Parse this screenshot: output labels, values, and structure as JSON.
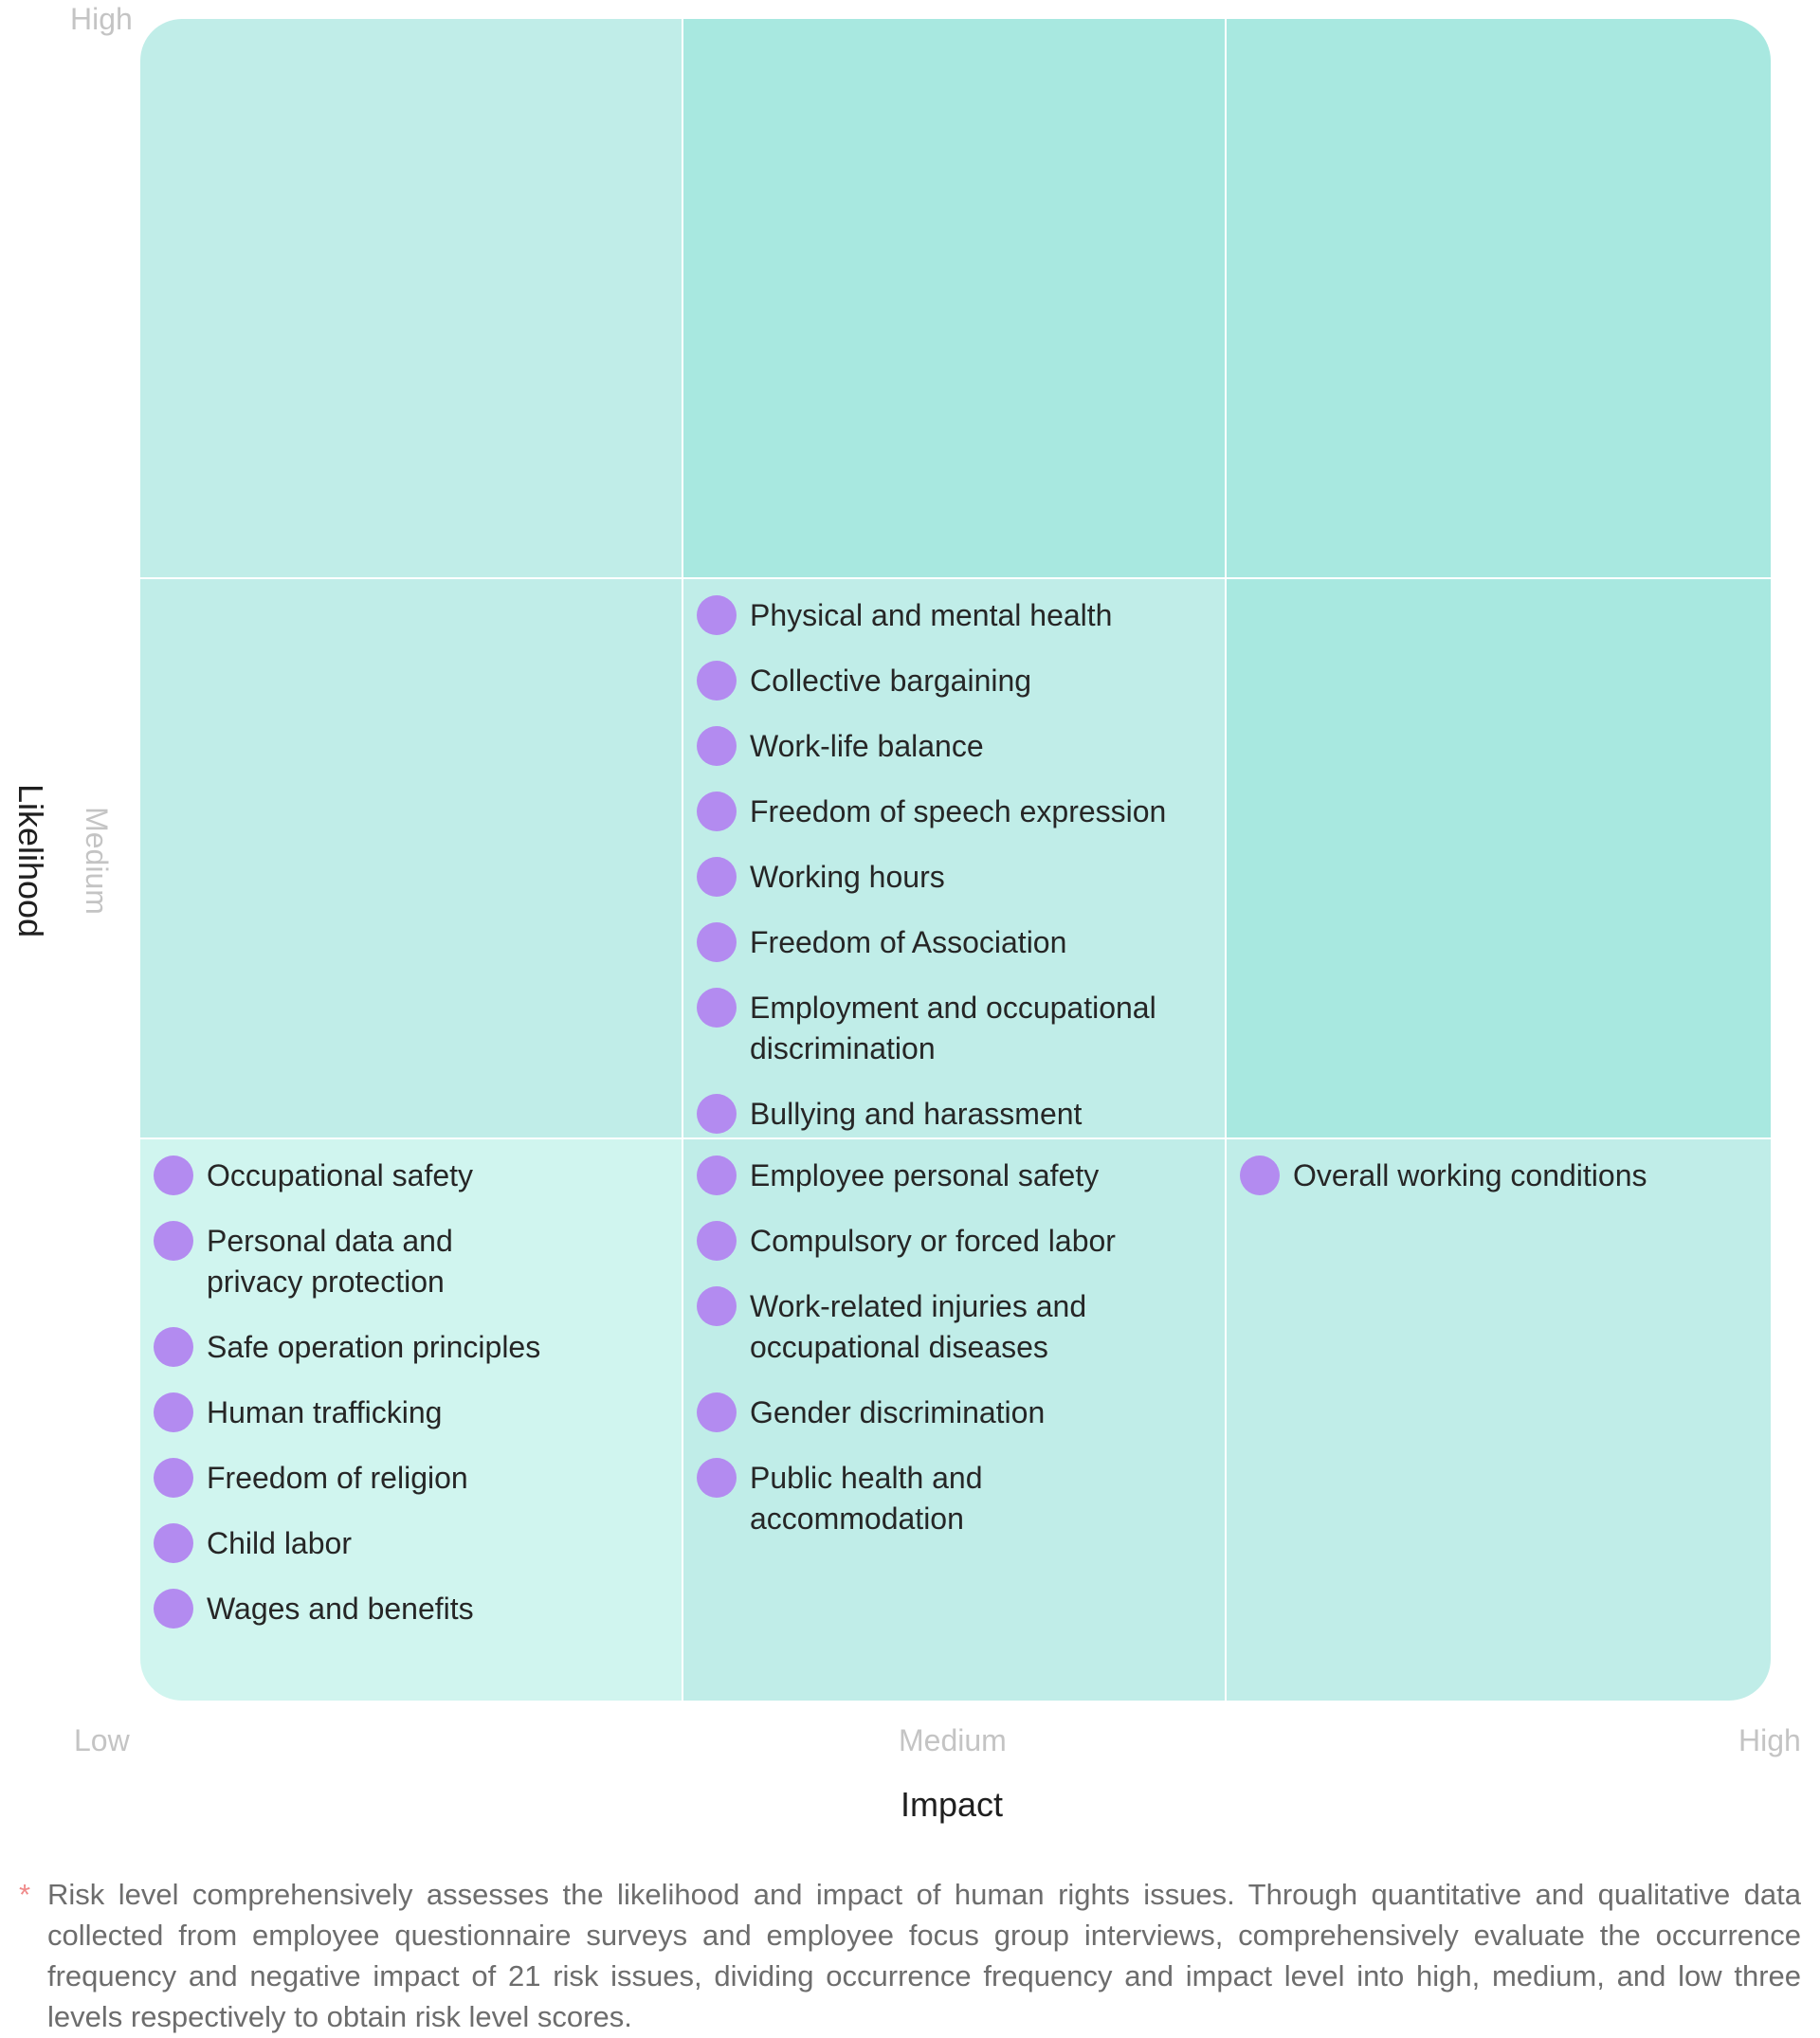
{
  "chart_data": {
    "type": "risk-matrix",
    "xlabel": "Impact",
    "ylabel": "Likelihood",
    "x_levels": [
      "Low",
      "Medium",
      "High"
    ],
    "y_levels": [
      "Low",
      "Medium",
      "High"
    ],
    "x_tick_labels": {
      "low": "Low",
      "medium": "Medium",
      "high": "High"
    },
    "y_tick_labels": {
      "medium": "Medium",
      "high": "High"
    },
    "cells": {
      "high_low": [],
      "high_medium": [],
      "high_high": [],
      "medium_low": [],
      "medium_medium": [
        "Physical and mental health",
        "Collective bargaining",
        "Work-life balance",
        "Freedom of speech expression",
        "Working hours",
        "Freedom of Association",
        "Employment and occupational\ndiscrimination",
        "Bullying and harassment"
      ],
      "medium_high": [],
      "low_low": [
        "Occupational safety",
        "Personal data and\nprivacy protection",
        "Safe operation principles",
        "Human trafficking",
        "Freedom of religion",
        "Child labor",
        "Wages and benefits"
      ],
      "low_medium": [
        "Employee personal safety",
        "Compulsory or forced labor",
        "Work-related injuries and\noccupational diseases",
        "Gender discrimination",
        "Public health and\naccommodation"
      ],
      "low_high": [
        "Overall working conditions"
      ]
    },
    "colors": {
      "dot": "#b38bf0",
      "cell_light": "#d0f5ef",
      "cell_mid": "#c0ede8",
      "cell_dark": "#a8e8e0"
    }
  },
  "footnote": {
    "marker": "*",
    "text": "Risk level comprehensively assesses the likelihood and impact of human rights issues. Through quantitative and qualitative data collected from employee questionnaire surveys and employee focus group interviews, comprehensively evaluate the occurrence frequency and negative impact of 21 risk issues, dividing occurrence frequency and impact level into high, medium, and low three levels respectively to obtain risk level scores."
  }
}
